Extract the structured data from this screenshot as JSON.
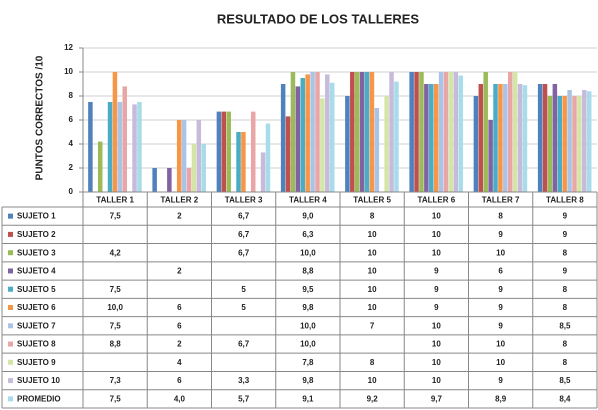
{
  "chart_data": {
    "type": "bar",
    "title": "RESULTADO DE LOS TALLERES",
    "y_label": "PUNTOS CORRECTOS /10",
    "categories": [
      "TALLER 1",
      "TALLER 2",
      "TALLER 3",
      "TALLER 4",
      "TALLER 5",
      "TALLER 6",
      "TALLER 7",
      "TALLER 8"
    ],
    "ylim": [
      0,
      12
    ],
    "yticks": [
      0,
      2,
      4,
      6,
      8,
      10,
      12
    ],
    "grid": true,
    "series": [
      {
        "name": "SUJETO 1",
        "color": "#4f81bd",
        "values": [
          7.5,
          2,
          6.7,
          9.0,
          8,
          10,
          8,
          9
        ],
        "value_labels": [
          "7,5",
          "2",
          "6,7",
          "9,0",
          "8",
          "10",
          "8",
          "9"
        ]
      },
      {
        "name": "SUJETO 2",
        "color": "#c0504d",
        "values": [
          null,
          null,
          6.7,
          6.3,
          10,
          10,
          9,
          9
        ],
        "value_labels": [
          null,
          null,
          "6,7",
          "6,3",
          "10",
          "10",
          "9",
          "9"
        ]
      },
      {
        "name": "SUJETO 3",
        "color": "#9bbb59",
        "values": [
          4.2,
          null,
          6.7,
          10.0,
          10,
          10,
          10,
          8
        ],
        "value_labels": [
          "4,2",
          null,
          "6,7",
          "10,0",
          "10",
          "10",
          "10",
          "8"
        ]
      },
      {
        "name": "SUJETO 4",
        "color": "#8064a2",
        "values": [
          null,
          2,
          null,
          8.8,
          10,
          9,
          6,
          9
        ],
        "value_labels": [
          null,
          "2",
          null,
          "8,8",
          "10",
          "9",
          "6",
          "9"
        ]
      },
      {
        "name": "SUJETO 5",
        "color": "#4bacc6",
        "values": [
          7.5,
          null,
          5,
          9.5,
          10,
          9,
          9,
          8
        ],
        "value_labels": [
          "7,5",
          null,
          "5",
          "9,5",
          "10",
          "9",
          "9",
          "8"
        ]
      },
      {
        "name": "SUJETO 6",
        "color": "#f79646",
        "values": [
          10.0,
          6,
          5,
          9.8,
          10,
          9,
          9,
          8
        ],
        "value_labels": [
          "10,0",
          "6",
          "5",
          "9,8",
          "10",
          "9",
          "9",
          "8"
        ]
      },
      {
        "name": "SUJETO 7",
        "color": "#a9c4e6",
        "values": [
          7.5,
          6,
          null,
          10.0,
          7,
          10,
          9,
          8.5
        ],
        "value_labels": [
          "7,5",
          "6",
          null,
          "10,0",
          "7",
          "10",
          "9",
          "8,5"
        ]
      },
      {
        "name": "SUJETO 8",
        "color": "#e8a7a6",
        "values": [
          8.8,
          2,
          6.7,
          10.0,
          null,
          10,
          10,
          8
        ],
        "value_labels": [
          "8,8",
          "2",
          "6,7",
          "10,0",
          null,
          "10",
          "10",
          "8"
        ]
      },
      {
        "name": "SUJETO 9",
        "color": "#d4e5a8",
        "values": [
          null,
          4,
          null,
          7.8,
          8,
          10,
          10,
          8
        ],
        "value_labels": [
          null,
          "4",
          null,
          "7,8",
          "8",
          "10",
          "10",
          "8"
        ]
      },
      {
        "name": "SUJETO 10",
        "color": "#c7bbdc",
        "values": [
          7.3,
          6,
          3.3,
          9.8,
          10,
          10,
          9,
          8.5
        ],
        "value_labels": [
          "7,3",
          "6",
          "3,3",
          "9,8",
          "10",
          "10",
          "9",
          "8,5"
        ]
      },
      {
        "name": "PROMEDIO",
        "color": "#a8dcea",
        "values": [
          7.5,
          4.0,
          5.7,
          9.1,
          9.2,
          9.7,
          8.9,
          8.4
        ],
        "value_labels": [
          "7,5",
          "4,0",
          "5,7",
          "9,1",
          "9,2",
          "9,7",
          "8,9",
          "8,4"
        ]
      }
    ]
  }
}
